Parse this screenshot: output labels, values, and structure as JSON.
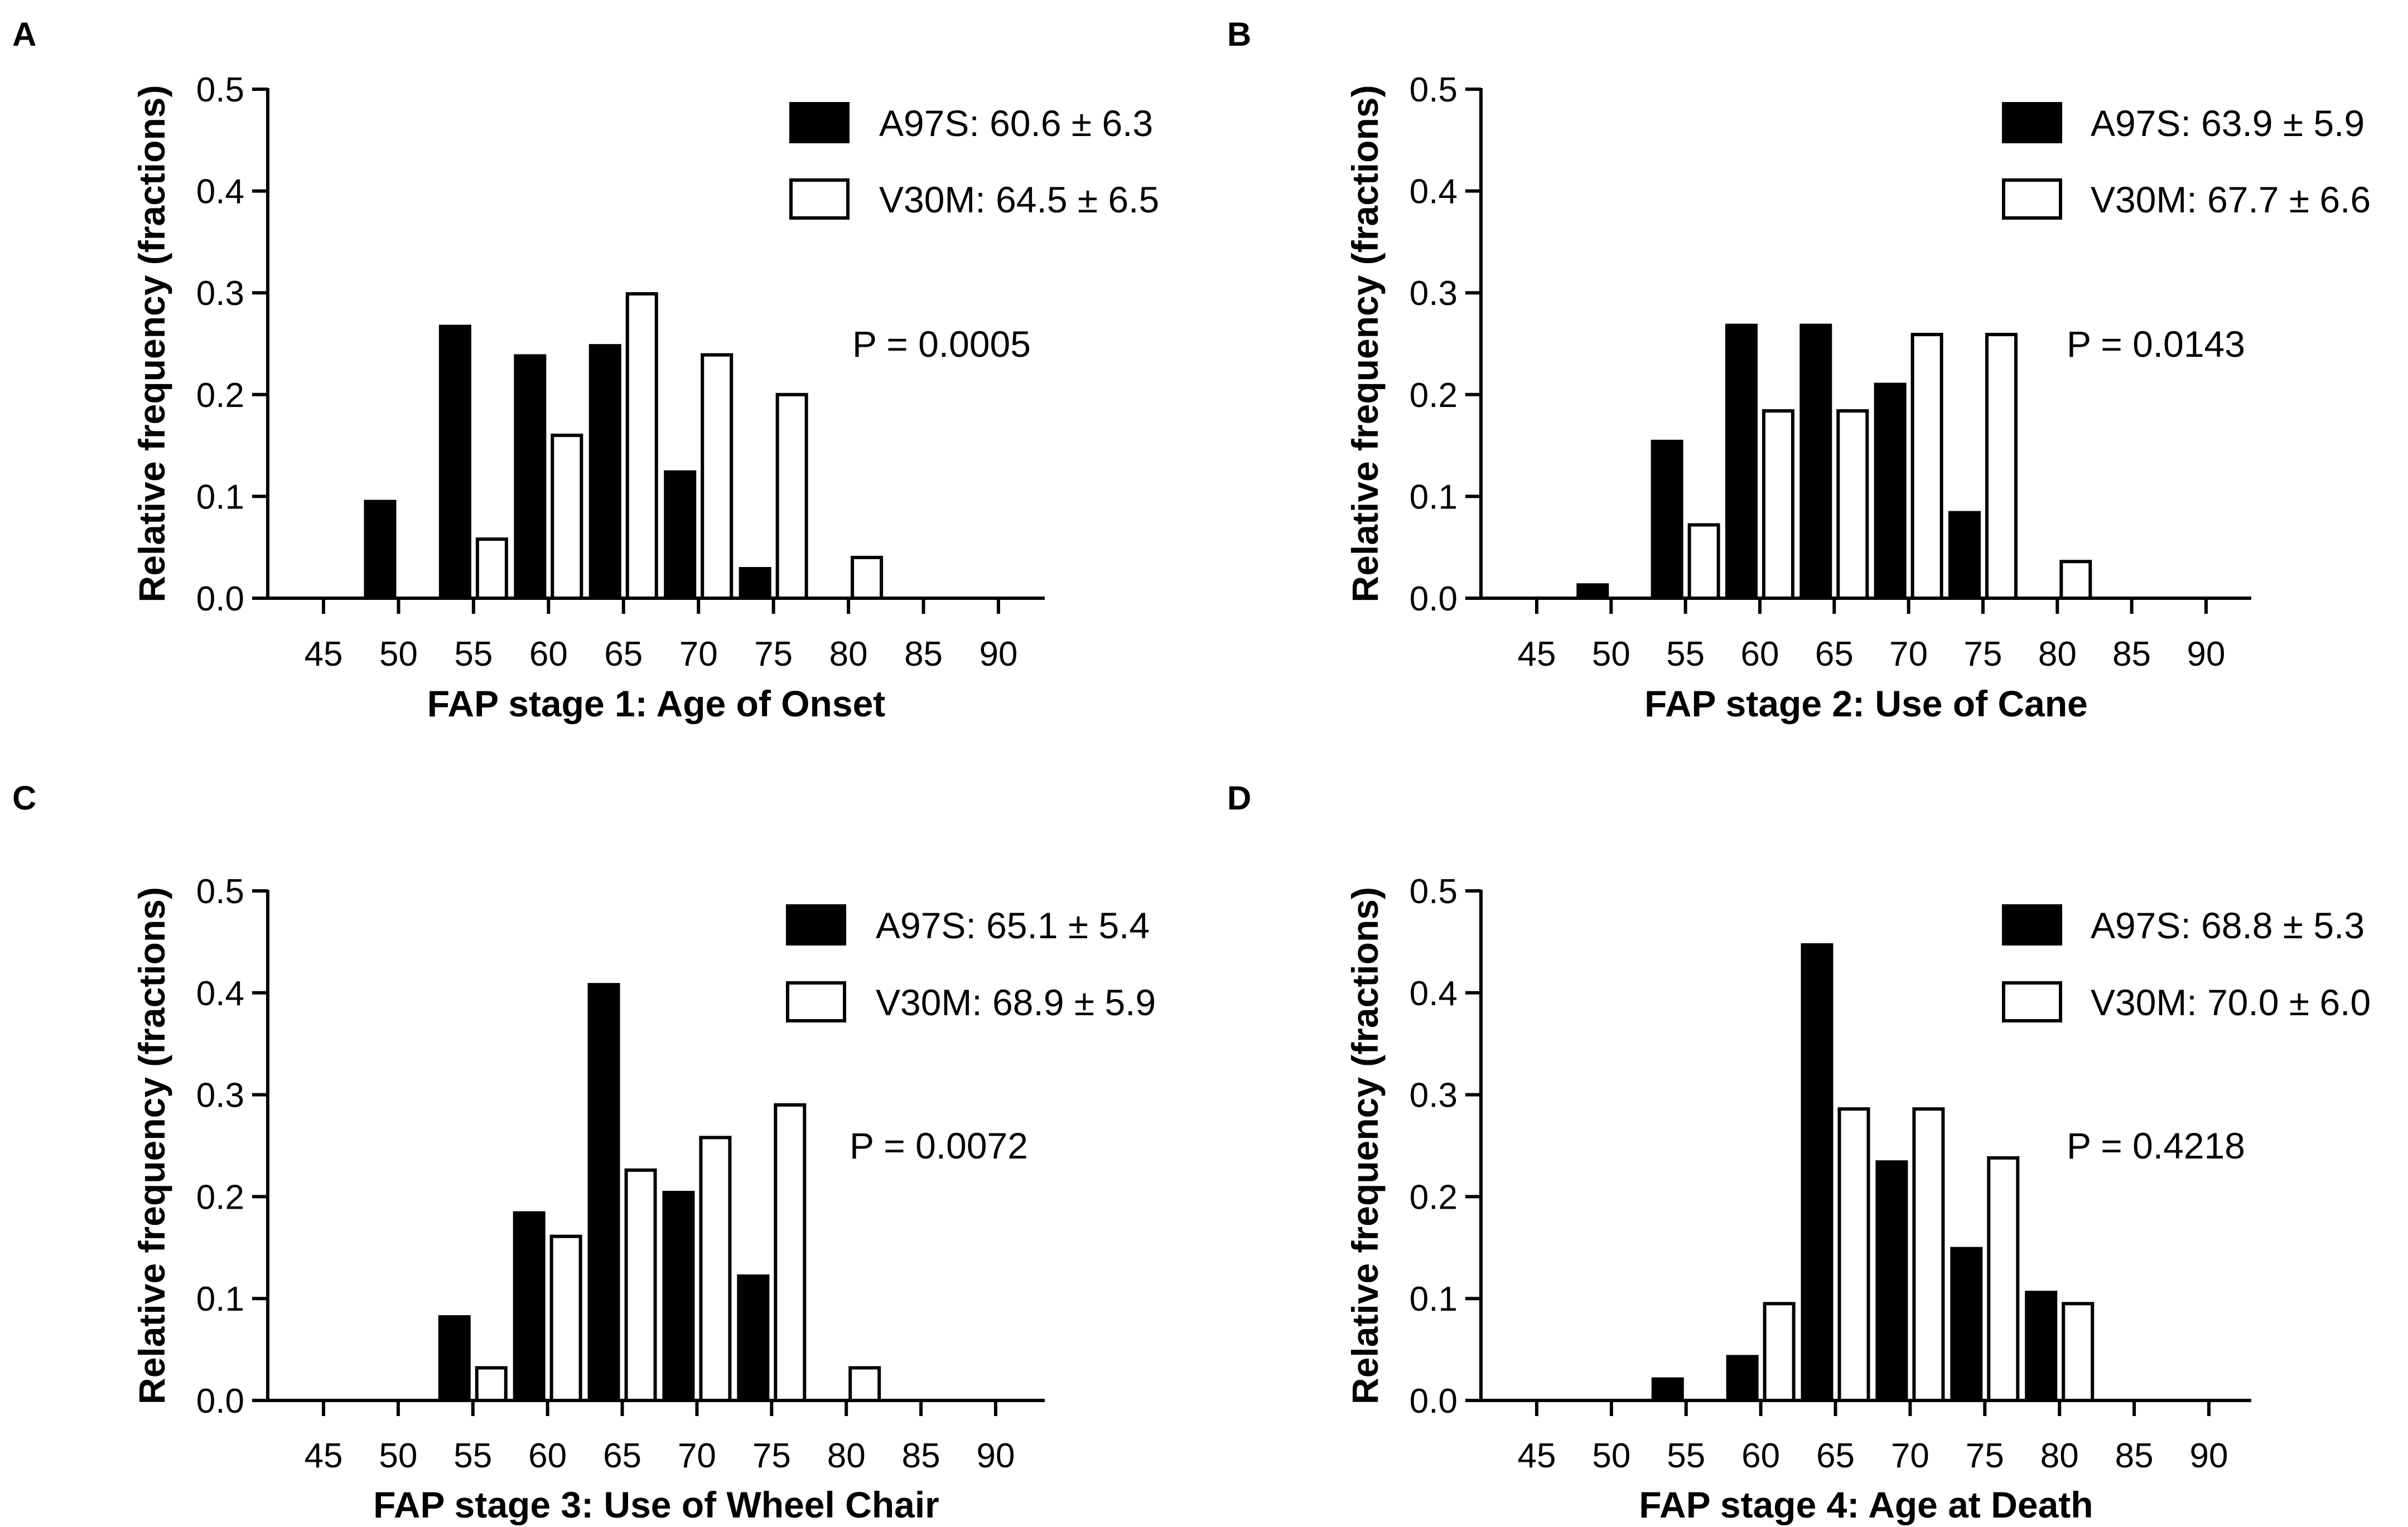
{
  "chart_data": [
    {
      "type": "bar",
      "panel": "A",
      "xlabel": "FAP stage 1:  Age of Onset",
      "ylabel": "Relative frequency (fractions)",
      "ylim": [
        0,
        0.5
      ],
      "yticks": [
        "0.0",
        "0.1",
        "0.2",
        "0.3",
        "0.4",
        "0.5"
      ],
      "categories": [
        "45",
        "50",
        "55",
        "60",
        "65",
        "70",
        "75",
        "80",
        "85",
        "90"
      ],
      "series": [
        {
          "name": "A97S: 60.6 ± 6.3",
          "fill": "#000000",
          "values": [
            0,
            0.095,
            0.267,
            0.238,
            0.248,
            0.124,
            0.029,
            0,
            0,
            0
          ]
        },
        {
          "name": "V30M: 64.5 ± 6.5",
          "fill": "#ffffff",
          "values": [
            0,
            0,
            0.058,
            0.16,
            0.299,
            0.239,
            0.2,
            0.04,
            0,
            0
          ]
        }
      ],
      "pvalue": "P = 0.0005"
    },
    {
      "type": "bar",
      "panel": "B",
      "xlabel": "FAP stage 2: Use of Cane",
      "ylabel": "Relative frequency (fractions)",
      "ylim": [
        0,
        0.5
      ],
      "yticks": [
        "0.0",
        "0.1",
        "0.2",
        "0.3",
        "0.4",
        "0.5"
      ],
      "categories": [
        "45",
        "50",
        "55",
        "60",
        "65",
        "70",
        "75",
        "80",
        "85",
        "90"
      ],
      "series": [
        {
          "name": "A97S: 63.9 ± 5.9",
          "fill": "#000000",
          "values": [
            0,
            0.013,
            0.154,
            0.268,
            0.268,
            0.21,
            0.084,
            0,
            0,
            0
          ]
        },
        {
          "name": "V30M: 67.7 ± 6.6",
          "fill": "#ffffff",
          "values": [
            0,
            0,
            0.072,
            0.184,
            0.184,
            0.259,
            0.259,
            0.036,
            0,
            0
          ]
        }
      ],
      "pvalue": "P = 0.0143"
    },
    {
      "type": "bar",
      "panel": "C",
      "xlabel": "FAP stage 3: Use of Wheel Chair",
      "ylabel": "Relative frequency (fractions)",
      "ylim": [
        0,
        0.5
      ],
      "yticks": [
        "0.0",
        "0.1",
        "0.2",
        "0.3",
        "0.4",
        "0.5"
      ],
      "categories": [
        "45",
        "50",
        "55",
        "60",
        "65",
        "70",
        "75",
        "80",
        "85",
        "90"
      ],
      "series": [
        {
          "name": "A97S: 65.1 ± 5.4",
          "fill": "#000000",
          "values": [
            0,
            0,
            0.082,
            0.184,
            0.408,
            0.204,
            0.122,
            0,
            0,
            0
          ]
        },
        {
          "name": "V30M: 68.9 ± 5.9",
          "fill": "#ffffff",
          "values": [
            0,
            0,
            0.032,
            0.161,
            0.226,
            0.258,
            0.29,
            0.032,
            0,
            0
          ]
        }
      ],
      "pvalue": "P = 0.0072"
    },
    {
      "type": "bar",
      "panel": "D",
      "xlabel": "FAP stage 4: Age at Death",
      "ylabel": "Relative frequency (fractions)",
      "ylim": [
        0,
        0.5
      ],
      "yticks": [
        "0.0",
        "0.1",
        "0.2",
        "0.3",
        "0.4",
        "0.5"
      ],
      "categories": [
        "45",
        "50",
        "55",
        "60",
        "65",
        "70",
        "75",
        "80",
        "85",
        "90"
      ],
      "series": [
        {
          "name": "A97S: 68.8 ± 5.3",
          "fill": "#000000",
          "values": [
            0,
            0,
            0.021,
            0.043,
            0.447,
            0.234,
            0.149,
            0.106,
            0,
            0
          ]
        },
        {
          "name": "V30M: 70.0 ± 6.0",
          "fill": "#ffffff",
          "values": [
            0,
            0,
            0,
            0.095,
            0.286,
            0.286,
            0.238,
            0.095,
            0,
            0
          ]
        }
      ],
      "pvalue": "P = 0.4218"
    }
  ]
}
